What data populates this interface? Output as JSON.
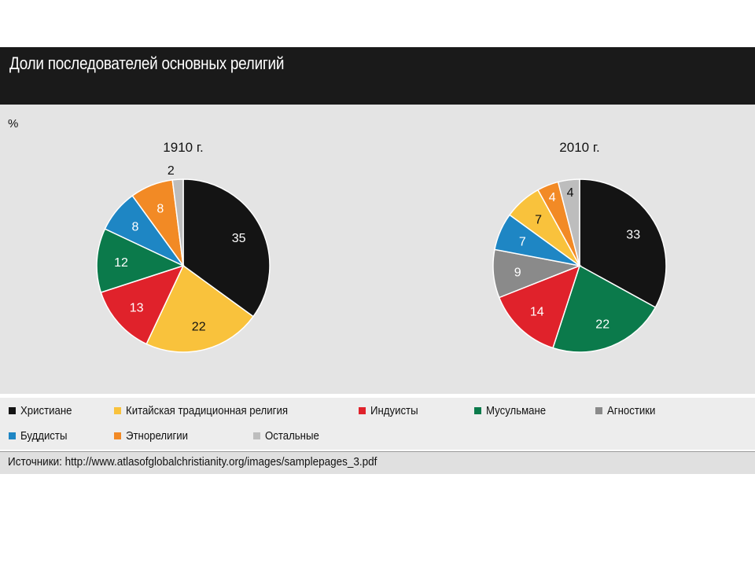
{
  "header": {
    "title": "Доли последователей основных религий"
  },
  "unit_label": "%",
  "colors": {
    "christians": "#141414",
    "chinese": "#f9c23c",
    "hindus": "#e0222b",
    "muslims": "#0b7a4b",
    "agnostics": "#8a8a8a",
    "buddhists": "#1e86c4",
    "ethnoreligions": "#f28a25",
    "others": "#bdbdbd"
  },
  "legend": {
    "row1": [
      {
        "key": "christians",
        "label": "Христиане"
      },
      {
        "key": "chinese",
        "label": "Китайская традиционная религия"
      },
      {
        "key": "hindus",
        "label": "Индуисты"
      },
      {
        "key": "muslims",
        "label": "Мусульмане"
      },
      {
        "key": "agnostics",
        "label": "Агностики"
      }
    ],
    "row2": [
      {
        "key": "buddhists",
        "label": "Буддисты"
      },
      {
        "key": "ethnoreligions",
        "label": "Этнорелигии"
      },
      {
        "key": "others",
        "label": "Остальные"
      }
    ]
  },
  "sources": "Источники:  http://www.atlasofglobalchristianity.org/images/samplepages_3.pdf",
  "chart_data": [
    {
      "type": "pie",
      "title": "1910 г.",
      "slices": [
        {
          "key": "christians",
          "value": 35
        },
        {
          "key": "chinese",
          "value": 22
        },
        {
          "key": "hindus",
          "value": 13
        },
        {
          "key": "muslims",
          "value": 12
        },
        {
          "key": "buddhists",
          "value": 8
        },
        {
          "key": "ethnoreligions",
          "value": 8
        },
        {
          "key": "others",
          "value": 2
        }
      ]
    },
    {
      "type": "pie",
      "title": "2010 г.",
      "slices": [
        {
          "key": "christians",
          "value": 33
        },
        {
          "key": "muslims",
          "value": 22
        },
        {
          "key": "hindus",
          "value": 14
        },
        {
          "key": "agnostics",
          "value": 9
        },
        {
          "key": "buddhists",
          "value": 7
        },
        {
          "key": "chinese",
          "value": 7
        },
        {
          "key": "ethnoreligions",
          "value": 4
        },
        {
          "key": "others",
          "value": 4
        }
      ]
    }
  ]
}
